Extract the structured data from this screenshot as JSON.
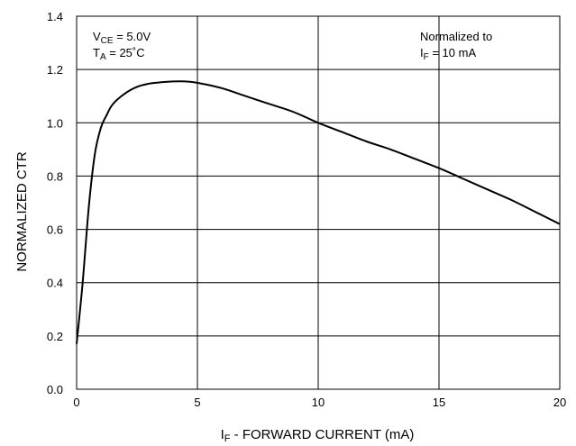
{
  "chart_data": {
    "type": "line",
    "xlabel_main": "I",
    "xlabel_sub": "F",
    "xlabel_rest": " - FORWARD CURRENT (mA)",
    "ylabel": "NORMALIZED CTR",
    "xlim": [
      0,
      20
    ],
    "ylim": [
      0,
      1.4
    ],
    "x_ticks": [
      "0",
      "5",
      "10",
      "15",
      "20"
    ],
    "y_ticks": [
      "0.0",
      "0.2",
      "0.4",
      "0.6",
      "0.8",
      "1.0",
      "1.2",
      "1.4"
    ],
    "grid": true,
    "annotations": {
      "vce_main": "V",
      "vce_sub": "CE",
      "vce_rest": " = 5.0V",
      "ta_main": "T",
      "ta_sub": "A",
      "ta_rest": " = 25˚C",
      "norm_line1": "Normalized to",
      "norm_main": "I",
      "norm_sub": "F",
      "norm_rest": " = 10 mA"
    },
    "series": [
      {
        "x": [
          0,
          0.25,
          0.5,
          0.75,
          1.0,
          1.25,
          1.5,
          2.0,
          2.5,
          3.0,
          3.5,
          4.0,
          4.5,
          5.0,
          6.0,
          7.0,
          8.0,
          9.0,
          10.0,
          11.0,
          12.0,
          13.0,
          14.0,
          15.0,
          16.0,
          17.0,
          18.0,
          19.0,
          20.0
        ],
        "y": [
          0.17,
          0.4,
          0.68,
          0.88,
          0.98,
          1.03,
          1.07,
          1.11,
          1.135,
          1.147,
          1.152,
          1.155,
          1.155,
          1.15,
          1.13,
          1.1,
          1.07,
          1.04,
          1.0,
          0.965,
          0.93,
          0.9,
          0.865,
          0.83,
          0.79,
          0.75,
          0.71,
          0.665,
          0.62
        ]
      }
    ]
  }
}
